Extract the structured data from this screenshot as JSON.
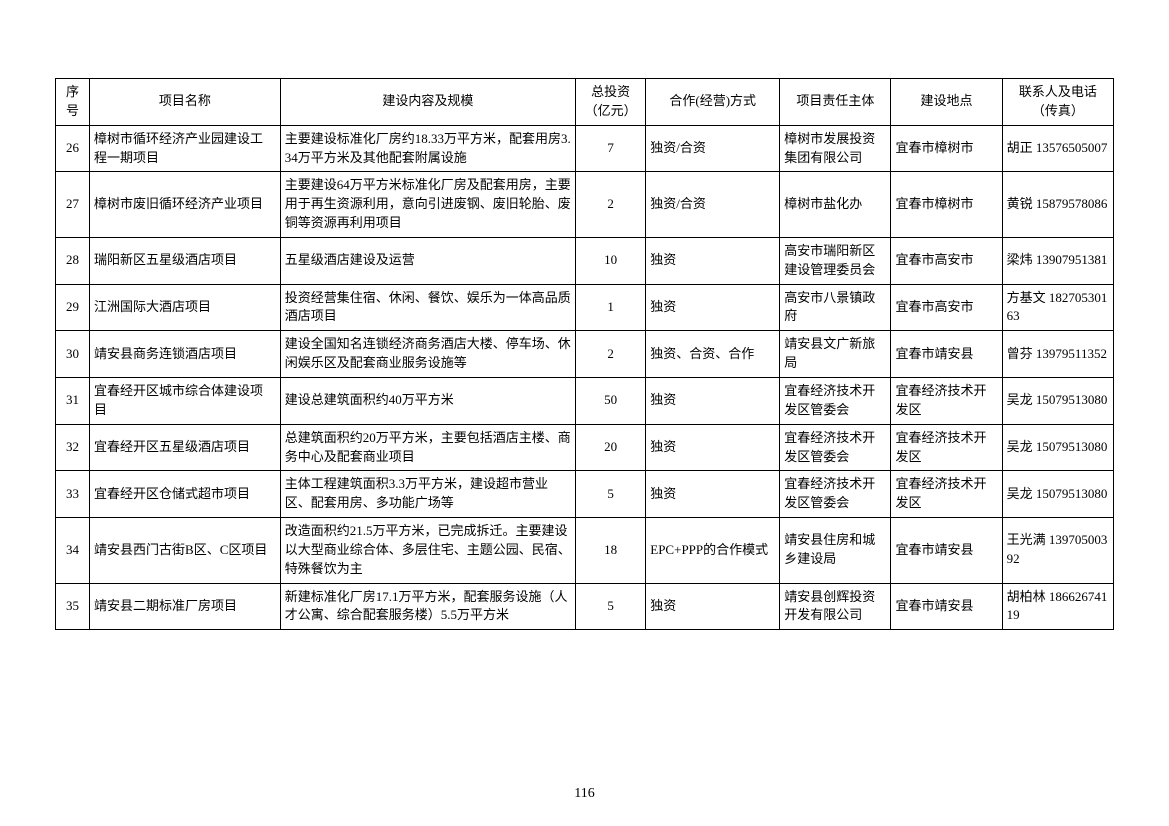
{
  "table": {
    "columns": [
      {
        "key": "seq",
        "label": "序号",
        "class": "col-seq"
      },
      {
        "key": "name",
        "label": "项目名称",
        "class": "col-name"
      },
      {
        "key": "desc",
        "label": "建设内容及规模",
        "class": "col-desc"
      },
      {
        "key": "inv",
        "label": "总投资（亿元）",
        "class": "col-inv"
      },
      {
        "key": "mode",
        "label": "合作(经营)方式",
        "class": "col-mode"
      },
      {
        "key": "owner",
        "label": "项目责任主体",
        "class": "col-owner"
      },
      {
        "key": "loc",
        "label": "建设地点",
        "class": "col-loc"
      },
      {
        "key": "contact",
        "label": "联系人及电话（传真）",
        "class": "col-contact"
      }
    ],
    "rows": [
      {
        "seq": "26",
        "name": "樟树市循环经济产业园建设工程一期项目",
        "desc": "主要建设标准化厂房约18.33万平方米，配套用房3.34万平方米及其他配套附属设施",
        "inv": "7",
        "mode": "独资/合资",
        "owner": "樟树市发展投资集团有限公司",
        "loc": "宜春市樟树市",
        "contact": "胡正 13576505007"
      },
      {
        "seq": "27",
        "name": "樟树市废旧循环经济产业项目",
        "desc": "主要建设64万平方米标准化厂房及配套用房，主要用于再生资源利用，意向引进废钢、废旧轮胎、废铜等资源再利用项目",
        "inv": "2",
        "mode": "独资/合资",
        "owner": "樟树市盐化办",
        "loc": "宜春市樟树市",
        "contact": "黄锐 15879578086"
      },
      {
        "seq": "28",
        "name": "瑞阳新区五星级酒店项目",
        "desc": "五星级酒店建设及运营",
        "inv": "10",
        "mode": "独资",
        "owner": "高安市瑞阳新区建设管理委员会",
        "loc": "宜春市高安市",
        "contact": "梁炜 13907951381"
      },
      {
        "seq": "29",
        "name": "江洲国际大酒店项目",
        "desc": "投资经营集住宿、休闲、餐饮、娱乐为一体高品质酒店项目",
        "inv": "1",
        "mode": "独资",
        "owner": "高安市八景镇政府",
        "loc": "宜春市高安市",
        "contact": "方基文 18270530163"
      },
      {
        "seq": "30",
        "name": "靖安县商务连锁酒店项目",
        "desc": "建设全国知名连锁经济商务酒店大楼、停车场、休闲娱乐区及配套商业服务设施等",
        "inv": "2",
        "mode": "独资、合资、合作",
        "owner": "靖安县文广新旅局",
        "loc": "宜春市靖安县",
        "contact": "曾芬 13979511352"
      },
      {
        "seq": "31",
        "name": "宜春经开区城市综合体建设项目",
        "desc": "建设总建筑面积约40万平方米",
        "inv": "50",
        "mode": "独资",
        "owner": "宜春经济技术开发区管委会",
        "loc": "宜春经济技术开发区",
        "contact": "吴龙 15079513080"
      },
      {
        "seq": "32",
        "name": "宜春经开区五星级酒店项目",
        "desc": "总建筑面积约20万平方米，主要包括酒店主楼、商务中心及配套商业项目",
        "inv": "20",
        "mode": "独资",
        "owner": "宜春经济技术开发区管委会",
        "loc": "宜春经济技术开发区",
        "contact": "吴龙 15079513080"
      },
      {
        "seq": "33",
        "name": "宜春经开区仓储式超市项目",
        "desc": "主体工程建筑面积3.3万平方米，建设超市营业区、配套用房、多功能广场等",
        "inv": "5",
        "mode": "独资",
        "owner": "宜春经济技术开发区管委会",
        "loc": "宜春经济技术开发区",
        "contact": "吴龙 15079513080"
      },
      {
        "seq": "34",
        "name": "靖安县西门古街B区、C区项目",
        "desc": "改造面积约21.5万平方米，已完成拆迁。主要建设以大型商业综合体、多层住宅、主题公园、民宿、特殊餐饮为主",
        "inv": "18",
        "mode": "EPC+PPP的合作模式",
        "owner": "靖安县住房和城乡建设局",
        "loc": "宜春市靖安县",
        "contact": "王光满 13970500392"
      },
      {
        "seq": "35",
        "name": "靖安县二期标准厂房项目",
        "desc": "新建标准化厂房17.1万平方米，配套服务设施（人才公寓、综合配套服务楼）5.5万平方米",
        "inv": "5",
        "mode": "独资",
        "owner": "靖安县创辉投资开发有限公司",
        "loc": "宜春市靖安县",
        "contact": "胡柏林 18662674119"
      }
    ],
    "border_color": "#000000",
    "background_color": "#ffffff",
    "font_size_pt": 10,
    "header_fontsize_pt": 10
  },
  "page_number": "116"
}
